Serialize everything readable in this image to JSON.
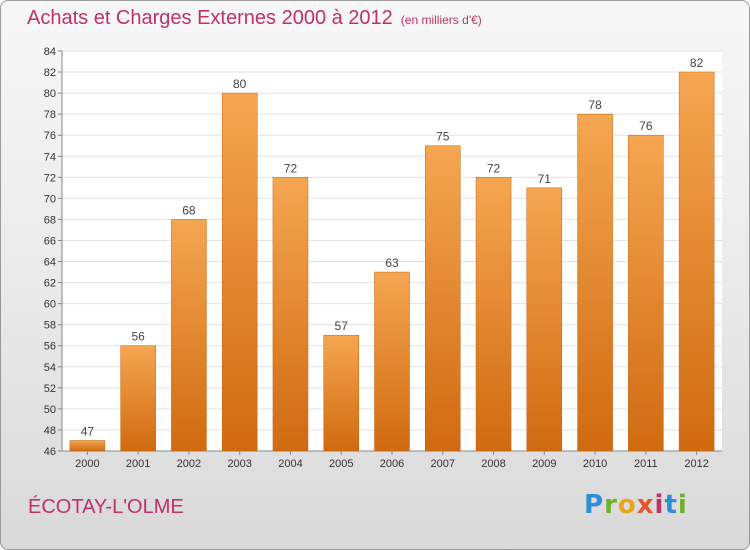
{
  "header": {
    "title": "Achats et Charges Externes 2000 à 2012",
    "unit": "(en milliers d'€)"
  },
  "footer": {
    "commune": "ÉCOTAY-L'OLME",
    "logo_letters": [
      "P",
      "r",
      "o",
      "x",
      "i",
      "t",
      "i"
    ]
  },
  "colors": {
    "title": "#c0306a",
    "bar_top": "#f5a651",
    "bar_bottom": "#d06a10"
  },
  "chart_data": {
    "type": "bar",
    "title": "Achats et Charges Externes 2000 à 2012",
    "subtitle": "(en milliers d'€)",
    "categories": [
      "2000",
      "2001",
      "2002",
      "2003",
      "2004",
      "2005",
      "2006",
      "2007",
      "2008",
      "2009",
      "2010",
      "2011",
      "2012"
    ],
    "values": [
      47,
      56,
      68,
      80,
      72,
      57,
      63,
      75,
      72,
      71,
      78,
      76,
      82
    ],
    "ylim": [
      46,
      84
    ],
    "yticks": [
      46,
      48,
      50,
      52,
      54,
      56,
      58,
      60,
      62,
      64,
      66,
      68,
      70,
      72,
      74,
      76,
      78,
      80,
      82,
      84
    ],
    "grid": true,
    "xlabel": "",
    "ylabel": ""
  }
}
